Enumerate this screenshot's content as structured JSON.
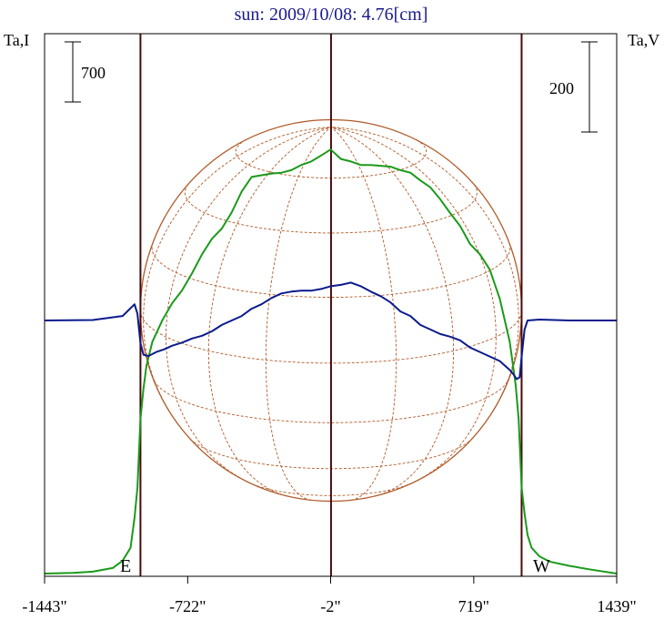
{
  "chart_data": {
    "type": "line",
    "title": "sun: 2009/10/08: 4.76[cm]",
    "left_axis_label": "Ta,I",
    "right_axis_label": "Ta,V",
    "left_scale_bar": "700",
    "right_scale_bar": "200",
    "limb_labels": {
      "east": "E",
      "west": "W"
    },
    "x_ticks": [
      {
        "value": -1443,
        "label": "-1443\""
      },
      {
        "value": -722,
        "label": "-722\""
      },
      {
        "value": -2,
        "label": "-2\""
      },
      {
        "value": 719,
        "label": "719\""
      },
      {
        "value": 1439,
        "label": "1439\""
      }
    ],
    "xlim": [
      -1443,
      1439
    ],
    "limb_positions_arcsec": [
      -960,
      0,
      960
    ],
    "grid": false,
    "colors": {
      "stokes_i": "#1a9a1a",
      "stokes_v": "#0a1a8c",
      "solar_disk": "#b05a28",
      "limb_lines": "#4a0a0a",
      "title": "#1a1a8c"
    },
    "series": [
      {
        "name": "Ta,I",
        "x": [
          -1443,
          -1300,
          -1200,
          -1100,
          -1050,
          -1010,
          -990,
          -975,
          -960,
          -945,
          -930,
          -900,
          -850,
          -800,
          -750,
          -700,
          -650,
          -600,
          -550,
          -500,
          -450,
          -400,
          -350,
          -300,
          -250,
          -200,
          -150,
          -100,
          -50,
          -2,
          50,
          100,
          150,
          200,
          250,
          300,
          350,
          400,
          450,
          500,
          550,
          600,
          650,
          700,
          750,
          800,
          850,
          900,
          930,
          945,
          960,
          975,
          990,
          1010,
          1050,
          1100,
          1200,
          1300,
          1439
        ],
        "y": [
          0,
          8,
          22,
          65,
          150,
          300,
          650,
          1000,
          1800,
          2150,
          2420,
          2700,
          2950,
          3150,
          3300,
          3500,
          3720,
          3900,
          4020,
          4210,
          4450,
          4620,
          4640,
          4660,
          4670,
          4700,
          4760,
          4800,
          4870,
          4940,
          4830,
          4800,
          4760,
          4760,
          4750,
          4740,
          4700,
          4670,
          4580,
          4500,
          4360,
          4200,
          4050,
          3840,
          3720,
          3540,
          3200,
          2700,
          2200,
          1800,
          1000,
          700,
          450,
          300,
          200,
          140,
          90,
          50,
          0
        ]
      },
      {
        "name": "Ta,V",
        "x": [
          -1443,
          -1200,
          -1050,
          -990,
          -975,
          -960,
          -945,
          -920,
          -880,
          -840,
          -800,
          -750,
          -700,
          -650,
          -600,
          -550,
          -500,
          -450,
          -400,
          -350,
          -300,
          -250,
          -200,
          -150,
          -100,
          -50,
          -2,
          50,
          100,
          150,
          200,
          250,
          300,
          350,
          400,
          450,
          500,
          550,
          600,
          650,
          700,
          750,
          800,
          850,
          900,
          920,
          935,
          950,
          960,
          975,
          990,
          1050,
          1200,
          1439
        ],
        "y": [
          0,
          1,
          10,
          36,
          15,
          -50,
          -76,
          -79,
          -70,
          -64,
          -56,
          -49,
          -40,
          -34,
          -24,
          -10,
          0,
          10,
          26,
          36,
          50,
          60,
          64,
          66,
          66,
          70,
          76,
          79,
          84,
          76,
          64,
          54,
          40,
          20,
          10,
          -10,
          -20,
          -30,
          -36,
          -44,
          -60,
          -70,
          -80,
          -90,
          -110,
          -120,
          -130,
          -126,
          -80,
          -20,
          0,
          2,
          0,
          0
        ]
      }
    ]
  }
}
